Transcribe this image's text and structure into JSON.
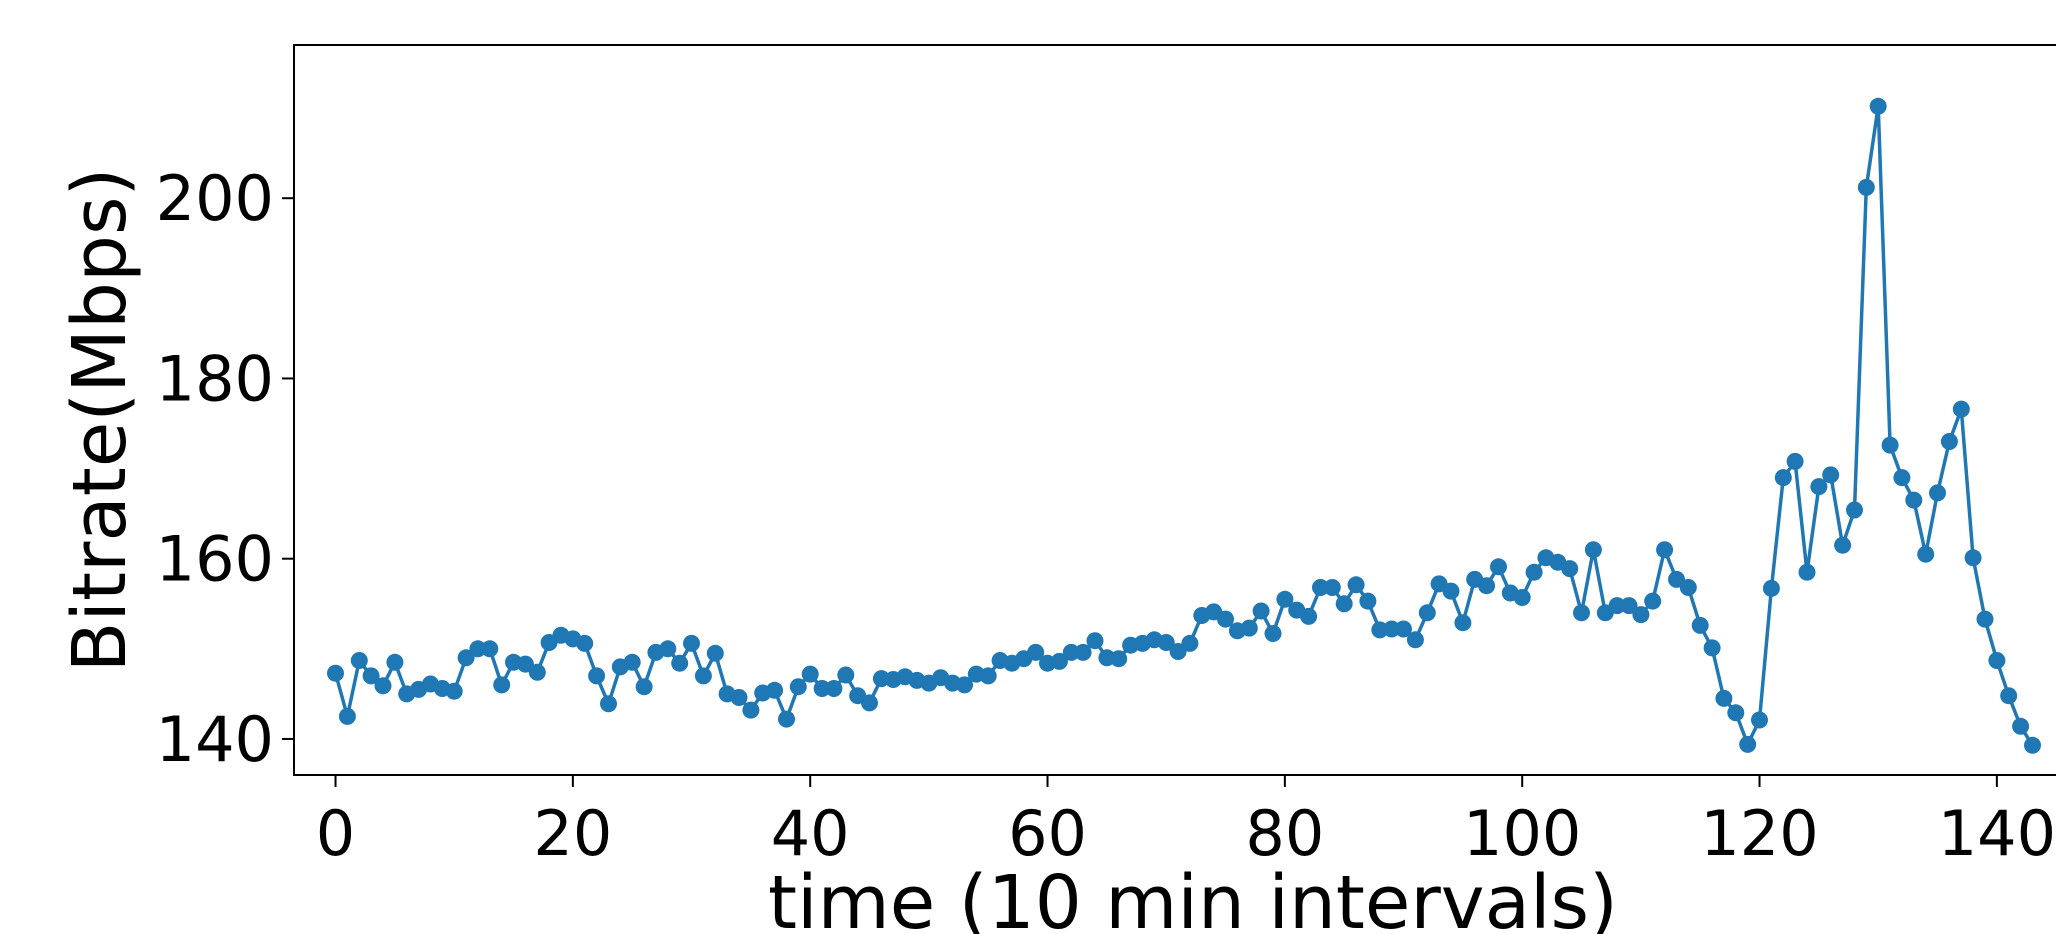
{
  "chart_data": {
    "type": "line",
    "title": "",
    "xlabel": "time (10 min intervals)",
    "ylabel": "Bitrate(Mbps)",
    "xlim": [
      -3.5,
      146.5
    ],
    "ylim": [
      136.0,
      217.0
    ],
    "xticks": [
      0,
      20,
      40,
      60,
      80,
      100,
      120,
      140
    ],
    "yticks": [
      140,
      160,
      180,
      200
    ],
    "xtick_labels": [
      "0",
      "20",
      "40",
      "60",
      "80",
      "100",
      "120",
      "140"
    ],
    "ytick_labels": [
      "140",
      "160",
      "180",
      "200"
    ],
    "grid": false,
    "legend": "none",
    "marker": "circle",
    "colors": {
      "series": "#1f77b4",
      "axes": "#000000",
      "background": "#ffffff"
    },
    "series": [
      {
        "x": [
          0,
          1,
          2,
          3,
          4,
          5,
          6,
          7,
          8,
          9,
          10,
          11,
          12,
          13,
          14,
          15,
          16,
          17,
          18,
          19,
          20,
          21,
          22,
          23,
          24,
          25,
          26,
          27,
          28,
          29,
          30,
          31,
          32,
          33,
          34,
          35,
          36,
          37,
          38,
          39,
          40,
          41,
          42,
          43,
          44,
          45,
          46,
          47,
          48,
          49,
          50,
          51,
          52,
          53,
          54,
          55,
          56,
          57,
          58,
          59,
          60,
          61,
          62,
          63,
          64,
          65,
          66,
          67,
          68,
          69,
          70,
          71,
          72,
          73,
          74,
          75,
          76,
          77,
          78,
          79,
          80,
          81,
          82,
          83,
          84,
          85,
          86,
          87,
          88,
          89,
          90,
          91,
          92,
          93,
          94,
          95,
          96,
          97,
          98,
          99,
          100,
          101,
          102,
          103,
          104,
          105,
          106,
          107,
          108,
          109,
          110,
          111,
          112,
          113,
          114,
          115,
          116,
          117,
          118,
          119,
          120,
          121,
          122,
          123,
          124,
          125,
          126,
          127,
          128,
          129,
          130,
          131,
          132,
          133,
          134,
          135,
          136,
          137,
          138,
          139,
          140,
          141,
          142,
          143
        ],
        "values": [
          147.3,
          142.5,
          148.7,
          147.0,
          145.9,
          148.5,
          145.0,
          145.5,
          146.1,
          145.6,
          145.3,
          149.0,
          150.0,
          150.0,
          146.0,
          148.5,
          148.3,
          147.4,
          150.7,
          151.5,
          151.1,
          150.6,
          147.0,
          143.9,
          148.0,
          148.5,
          145.8,
          149.6,
          150.0,
          148.4,
          150.6,
          147.0,
          149.5,
          145.0,
          144.6,
          143.2,
          145.1,
          145.4,
          142.2,
          145.8,
          147.2,
          145.6,
          145.6,
          147.1,
          144.8,
          144.0,
          146.7,
          146.6,
          146.9,
          146.5,
          146.2,
          146.8,
          146.2,
          146.0,
          147.2,
          147.0,
          148.7,
          148.4,
          148.9,
          149.6,
          148.4,
          148.6,
          149.6,
          149.6,
          150.9,
          149.0,
          148.9,
          150.4,
          150.6,
          151.0,
          150.7,
          149.7,
          150.6,
          153.7,
          154.1,
          153.3,
          152.0,
          152.3,
          154.2,
          151.7,
          155.5,
          154.3,
          153.6,
          156.8,
          156.8,
          155.0,
          157.1,
          155.3,
          152.1,
          152.2,
          152.2,
          151.0,
          154.0,
          157.2,
          156.4,
          152.9,
          157.7,
          157.0,
          159.1,
          156.2,
          155.7,
          158.5,
          160.1,
          159.6,
          158.9,
          154.0,
          161.0,
          154.0,
          154.8,
          154.8,
          153.8,
          155.3,
          161.0,
          157.7,
          156.8,
          152.6,
          150.1,
          144.5,
          142.9,
          139.4,
          142.1,
          156.7,
          169.0,
          170.8,
          158.5,
          168.0,
          169.3,
          161.5,
          165.4,
          201.2,
          210.2,
          172.6,
          169.0,
          166.5,
          160.5,
          167.3,
          173.0,
          176.6,
          160.1,
          153.3,
          148.7,
          144.8,
          141.4,
          139.3
        ]
      }
    ]
  }
}
